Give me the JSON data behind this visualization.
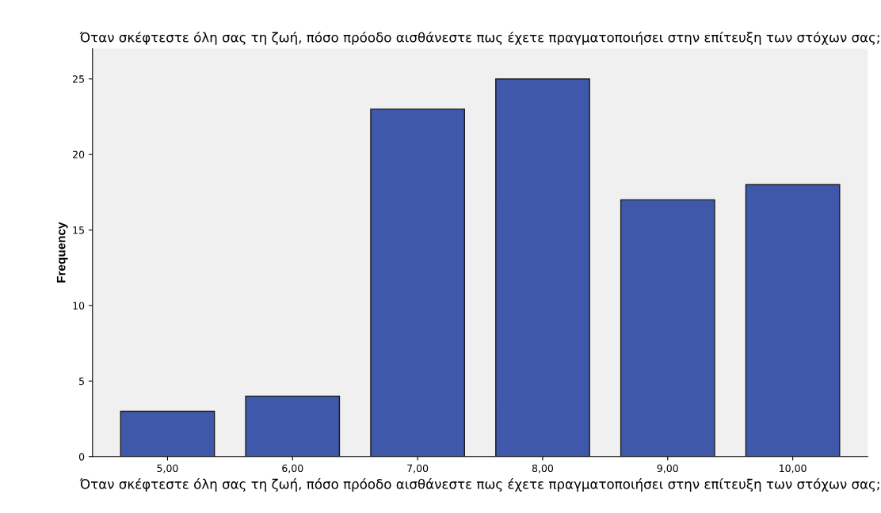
{
  "chart_data": {
    "type": "bar",
    "title": "Όταν σκέφτεστε όλη σας τη ζωή, πόσο πρόοδο αισθάνεστε πως έχετε πραγματοποιήσει στην επίτευξη των στόχων σας;",
    "xlabel": "Όταν σκέφτεστε όλη σας τη ζωή, πόσο πρόοδο αισθάνεστε πως έχετε πραγματοποιήσει στην επίτευξη των στόχων σας;",
    "ylabel": "Frequency",
    "categories": [
      "5,00",
      "6,00",
      "7,00",
      "8,00",
      "9,00",
      "10,00"
    ],
    "values": [
      3,
      4,
      23,
      25,
      17,
      18
    ],
    "color": "#3f58a9",
    "ylim": [
      0,
      27
    ],
    "yticks": [
      0,
      5,
      10,
      15,
      20,
      25
    ],
    "grid": false
  }
}
